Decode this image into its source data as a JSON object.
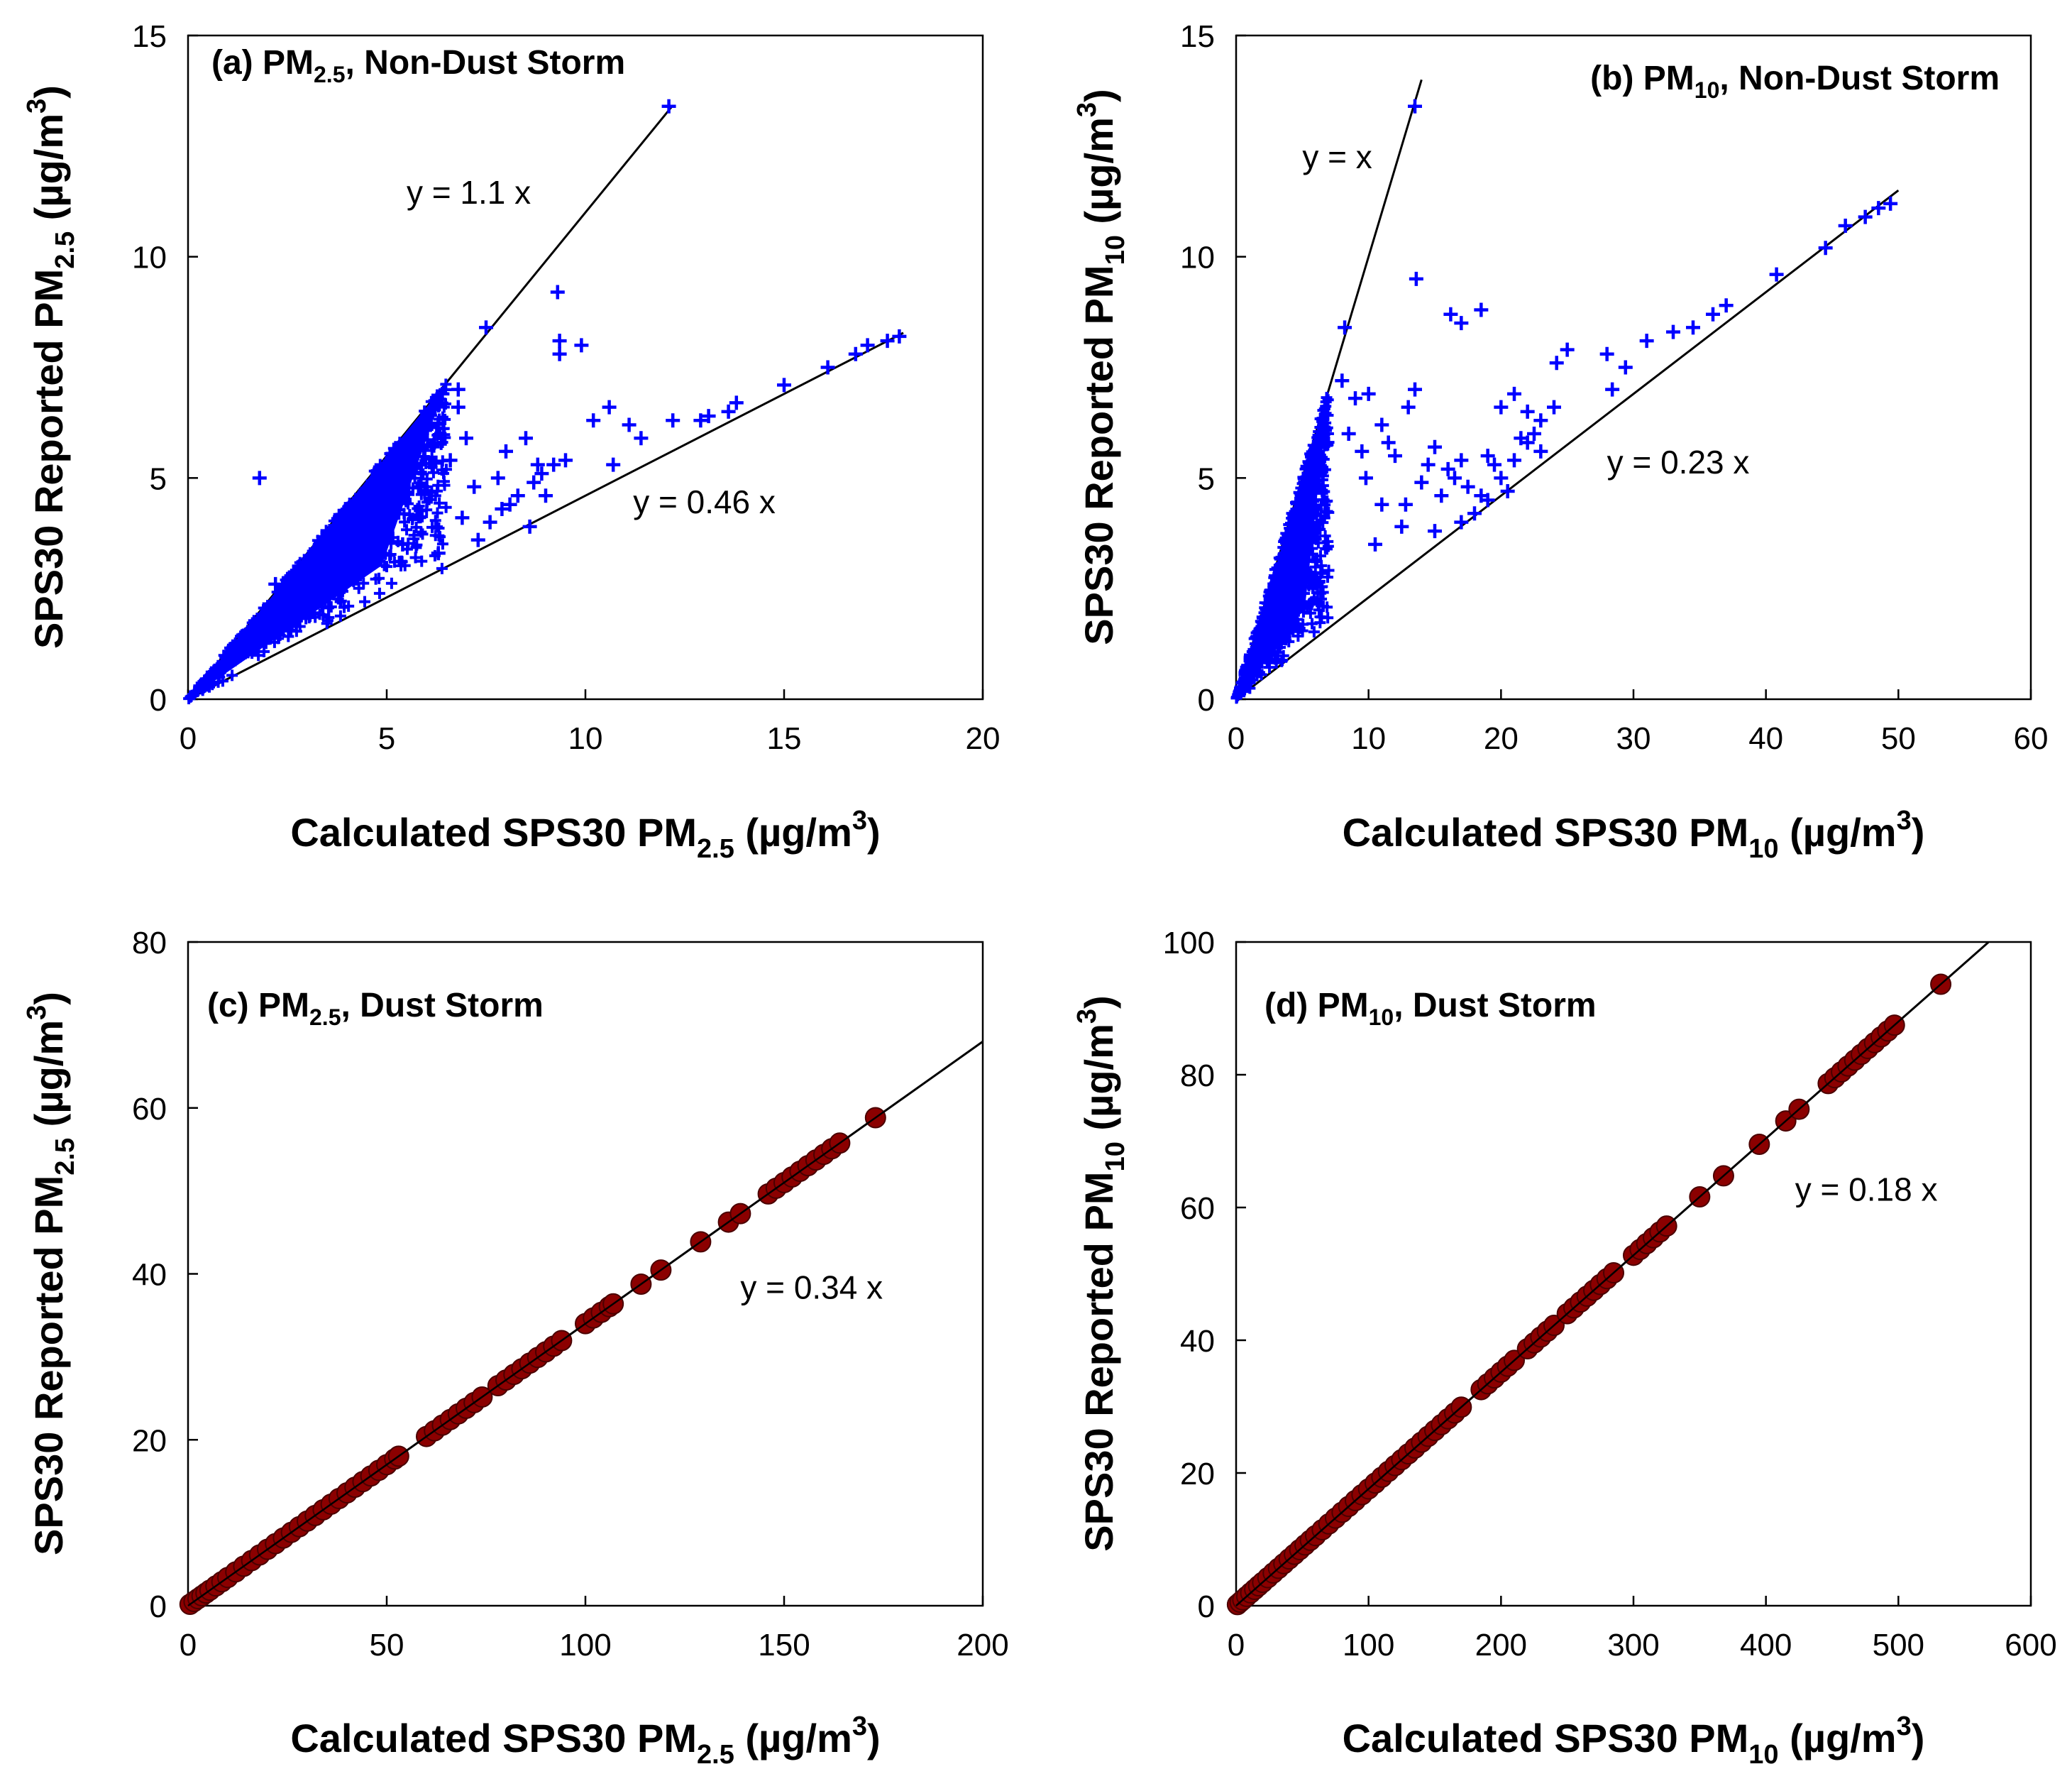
{
  "figure": {
    "colors": {
      "non_dust_marker": "#0000ff",
      "dust_marker": "#8b0000",
      "dust_marker_edge": "#4a0000",
      "axis": "#000000",
      "fit_line": "#000000"
    }
  },
  "chart_data": [
    {
      "id": "a",
      "type": "scatter",
      "marker": "plus",
      "panel_label_prefix": "(a) PM",
      "panel_label_sub": "2.5",
      "panel_label_suffix": ", Non-Dust Storm",
      "xlabel_prefix": "Calculated SPS30 PM",
      "xlabel_sub": "2.5",
      "xlabel_unit": " (µg/m",
      "xlabel_sup": "3",
      "xlabel_close": ")",
      "ylabel_prefix": "SPS30 Reported PM",
      "ylabel_sub": "2.5",
      "ylabel_unit": " (µg/m",
      "ylabel_sup": "3",
      "ylabel_close": ")",
      "xlim": [
        0,
        20
      ],
      "ylim": [
        0,
        15
      ],
      "xticks": [
        0,
        5,
        10,
        15,
        20
      ],
      "xtick_labels": [
        "0",
        "5",
        "10",
        "15",
        "20"
      ],
      "yticks": [
        0,
        5,
        10,
        15
      ],
      "ytick_labels": [
        "0",
        "5",
        "10",
        "15"
      ],
      "fit_lines": [
        {
          "slope": 1.1,
          "x_end": 12.2,
          "label": "y = 1.1 x",
          "label_x": 5.5,
          "label_y": 11.2
        },
        {
          "slope": 0.46,
          "x_end": 18.0,
          "label": "y = 0.46 x",
          "label_x": 11.2,
          "label_y": 4.2
        }
      ],
      "cloud": {
        "x_max": 6.5,
        "slope_high": 1.1,
        "slope_low": 0.46,
        "count": 750,
        "seed": 11
      },
      "points": [
        [
          1.8,
          5.0
        ],
        [
          2.2,
          2.6
        ],
        [
          2.8,
          3.0
        ],
        [
          3.5,
          3.4
        ],
        [
          4.2,
          3.8
        ],
        [
          5.0,
          4.4
        ],
        [
          5.6,
          5.2
        ],
        [
          6.2,
          5.8
        ],
        [
          6.6,
          5.4
        ],
        [
          6.8,
          6.6
        ],
        [
          7.0,
          5.9
        ],
        [
          7.2,
          4.8
        ],
        [
          7.5,
          8.4
        ],
        [
          7.6,
          4.0
        ],
        [
          7.8,
          5.0
        ],
        [
          8.0,
          5.6
        ],
        [
          8.1,
          4.4
        ],
        [
          8.3,
          4.6
        ],
        [
          8.5,
          5.9
        ],
        [
          8.6,
          3.9
        ],
        [
          8.7,
          4.9
        ],
        [
          8.8,
          5.3
        ],
        [
          9.0,
          4.6
        ],
        [
          9.2,
          5.3
        ],
        [
          9.3,
          9.2
        ],
        [
          9.35,
          8.1
        ],
        [
          9.35,
          7.8
        ],
        [
          9.5,
          5.4
        ],
        [
          9.9,
          8.0
        ],
        [
          10.2,
          6.3
        ],
        [
          10.6,
          6.6
        ],
        [
          10.7,
          5.3
        ],
        [
          11.1,
          6.2
        ],
        [
          11.4,
          5.9
        ],
        [
          12.1,
          13.4
        ],
        [
          12.2,
          6.3
        ],
        [
          12.9,
          6.3
        ],
        [
          13.1,
          6.4
        ],
        [
          13.6,
          6.5
        ],
        [
          13.8,
          6.7
        ],
        [
          15.0,
          7.1
        ],
        [
          16.1,
          7.5
        ],
        [
          16.8,
          7.8
        ],
        [
          17.1,
          8.0
        ],
        [
          17.6,
          8.1
        ],
        [
          17.9,
          8.2
        ],
        [
          6.8,
          7.0
        ],
        [
          6.4,
          6.9
        ],
        [
          6.1,
          6.2
        ],
        [
          5.8,
          4.8
        ],
        [
          6.9,
          4.1
        ],
        [
          7.3,
          3.6
        ],
        [
          6.3,
          3.3
        ],
        [
          5.4,
          3.5
        ],
        [
          8.9,
          5.1
        ],
        [
          7.9,
          4.3
        ]
      ]
    },
    {
      "id": "b",
      "type": "scatter",
      "marker": "plus",
      "panel_label_prefix": "(b) PM",
      "panel_label_sub": "10",
      "panel_label_suffix": ", Non-Dust Storm",
      "xlabel_prefix": "Calculated SPS30 PM",
      "xlabel_sub": "10",
      "xlabel_unit": " (µg/m",
      "xlabel_sup": "3",
      "xlabel_close": ")",
      "ylabel_prefix": "SPS30 Reported PM",
      "ylabel_sub": "10",
      "ylabel_unit": " (µg/m",
      "ylabel_sup": "3",
      "ylabel_close": ")",
      "xlim": [
        0,
        60
      ],
      "ylim": [
        0,
        15
      ],
      "xticks": [
        0,
        10,
        20,
        30,
        40,
        50,
        60
      ],
      "xtick_labels": [
        "0",
        "10",
        "20",
        "30",
        "40",
        "50",
        "60"
      ],
      "yticks": [
        0,
        5,
        10,
        15
      ],
      "ytick_labels": [
        "0",
        "5",
        "10",
        "15"
      ],
      "fit_lines": [
        {
          "slope": 1.0,
          "x_end": 14.0,
          "label": "y = x",
          "label_x": 5.0,
          "label_y": 12.0
        },
        {
          "slope": 0.23,
          "x_end": 50.0,
          "label": "y = 0.23 x",
          "label_x": 28.0,
          "label_y": 5.1
        }
      ],
      "cloud": {
        "x_max": 7.0,
        "slope_high": 1.0,
        "slope_low": 0.23,
        "count": 750,
        "seed": 23
      },
      "points": [
        [
          13.5,
          13.4
        ],
        [
          13.6,
          9.5
        ],
        [
          8.2,
          8.4
        ],
        [
          16.2,
          8.7
        ],
        [
          17.0,
          8.5
        ],
        [
          18.5,
          8.8
        ],
        [
          20.0,
          6.6
        ],
        [
          21.0,
          6.9
        ],
        [
          22.0,
          6.5
        ],
        [
          23.0,
          6.3
        ],
        [
          24.0,
          6.6
        ],
        [
          24.2,
          7.6
        ],
        [
          25.0,
          7.9
        ],
        [
          28.0,
          7.8
        ],
        [
          28.4,
          7.0
        ],
        [
          29.4,
          7.5
        ],
        [
          31.0,
          8.1
        ],
        [
          33.0,
          8.3
        ],
        [
          34.5,
          8.4
        ],
        [
          36.0,
          8.7
        ],
        [
          37.0,
          8.9
        ],
        [
          40.8,
          9.6
        ],
        [
          44.5,
          10.2
        ],
        [
          46.0,
          10.7
        ],
        [
          47.5,
          10.9
        ],
        [
          48.5,
          11.1
        ],
        [
          49.4,
          11.2
        ],
        [
          8.0,
          7.2
        ],
        [
          9.0,
          6.8
        ],
        [
          10.0,
          6.9
        ],
        [
          11.0,
          6.2
        ],
        [
          12.0,
          5.5
        ],
        [
          13.0,
          6.6
        ],
        [
          13.5,
          7.0
        ],
        [
          14.0,
          4.9
        ],
        [
          14.5,
          5.3
        ],
        [
          15.0,
          5.7
        ],
        [
          15.5,
          4.6
        ],
        [
          16.0,
          5.2
        ],
        [
          16.5,
          5.0
        ],
        [
          17.0,
          5.4
        ],
        [
          17.5,
          4.8
        ],
        [
          18.0,
          4.2
        ],
        [
          18.5,
          4.6
        ],
        [
          19.0,
          5.5
        ],
        [
          19.5,
          5.3
        ],
        [
          20.0,
          5.0
        ],
        [
          20.5,
          4.7
        ],
        [
          21.0,
          5.4
        ],
        [
          22.0,
          5.8
        ],
        [
          23.0,
          5.6
        ],
        [
          12.5,
          3.9
        ],
        [
          11.0,
          4.4
        ],
        [
          9.5,
          5.6
        ],
        [
          10.5,
          3.5
        ],
        [
          15.0,
          3.8
        ],
        [
          17.0,
          4.0
        ],
        [
          19.0,
          4.5
        ],
        [
          21.5,
          5.9
        ],
        [
          22.5,
          6.0
        ],
        [
          8.5,
          6.0
        ],
        [
          9.8,
          5.0
        ],
        [
          11.5,
          5.8
        ],
        [
          12.8,
          4.4
        ]
      ]
    },
    {
      "id": "c",
      "type": "scatter",
      "marker": "circle",
      "panel_label_prefix": "(c) PM",
      "panel_label_sub": "2.5",
      "panel_label_suffix": ", Dust Storm",
      "xlabel_prefix": "Calculated SPS30 PM",
      "xlabel_sub": "2.5",
      "xlabel_unit": " (µg/m",
      "xlabel_sup": "3",
      "xlabel_close": ")",
      "ylabel_prefix": "SPS30 Reported PM",
      "ylabel_sub": "2.5",
      "ylabel_unit": " (µg/m",
      "ylabel_sup": "3",
      "ylabel_close": ")",
      "xlim": [
        0,
        200
      ],
      "ylim": [
        0,
        80
      ],
      "xticks": [
        0,
        50,
        100,
        150,
        200
      ],
      "xtick_labels": [
        "0",
        "50",
        "100",
        "150",
        "200"
      ],
      "yticks": [
        0,
        20,
        40,
        60,
        80
      ],
      "ytick_labels": [
        "0",
        "20",
        "40",
        "60",
        "80"
      ],
      "fit_lines": [
        {
          "slope": 0.34,
          "x_end": 200.0,
          "label": "y = 0.34 x",
          "label_x": 139.0,
          "label_y": 37.0
        }
      ],
      "line_slope": 0.34,
      "x_samples": [
        0.5,
        1.5,
        2.5,
        3.5,
        4.5,
        5.5,
        7,
        8.5,
        10,
        12,
        14,
        16,
        18,
        20,
        22,
        24,
        26,
        28,
        30,
        32,
        34,
        36,
        38,
        40,
        42,
        44,
        46,
        48,
        50,
        52,
        53,
        60,
        62,
        64,
        66,
        68,
        70,
        72,
        74,
        78,
        80,
        82,
        84,
        86,
        88,
        90,
        92,
        94,
        100,
        102,
        104,
        106,
        107,
        114,
        119,
        129,
        136,
        139,
        146,
        148,
        150,
        152,
        154,
        156,
        158,
        160,
        162,
        164,
        173
      ]
    },
    {
      "id": "d",
      "type": "scatter",
      "marker": "circle",
      "panel_label_prefix": "(d) PM",
      "panel_label_sub": "10",
      "panel_label_suffix": ", Dust Storm",
      "xlabel_prefix": "Calculated SPS30 PM",
      "xlabel_sub": "10",
      "xlabel_unit": " (µg/m",
      "xlabel_sup": "3",
      "xlabel_close": ")",
      "ylabel_prefix": "SPS30 Reported PM",
      "ylabel_sub": "10",
      "ylabel_unit": " (µg/m",
      "ylabel_sup": "3",
      "ylabel_close": ")",
      "xlim": [
        0,
        600
      ],
      "ylim": [
        0,
        100
      ],
      "xticks": [
        0,
        100,
        200,
        300,
        400,
        500,
        600
      ],
      "xtick_labels": [
        "0",
        "100",
        "200",
        "300",
        "400",
        "500",
        "600"
      ],
      "yticks": [
        0,
        20,
        40,
        60,
        80,
        100
      ],
      "ytick_labels": [
        "0",
        "20",
        "40",
        "60",
        "80",
        "100"
      ],
      "fit_lines": [
        {
          "slope": 0.176,
          "x_end": 568.0,
          "label": "y = 0.18 x",
          "label_x": 422.0,
          "label_y": 61.0
        }
      ],
      "line_slope": 0.176,
      "x_samples": [
        1,
        3,
        5,
        8,
        11,
        14,
        17,
        20,
        24,
        28,
        32,
        36,
        40,
        44,
        48,
        52,
        56,
        60,
        65,
        70,
        75,
        80,
        85,
        90,
        95,
        100,
        105,
        110,
        115,
        120,
        125,
        130,
        135,
        140,
        145,
        150,
        155,
        160,
        165,
        170,
        185,
        190,
        195,
        200,
        205,
        210,
        220,
        225,
        230,
        235,
        240,
        250,
        255,
        260,
        265,
        270,
        275,
        280,
        285,
        300,
        305,
        310,
        315,
        320,
        325,
        350,
        368,
        395,
        415,
        425,
        447,
        452,
        457,
        462,
        467,
        472,
        477,
        482,
        487,
        492,
        497,
        532
      ]
    }
  ]
}
